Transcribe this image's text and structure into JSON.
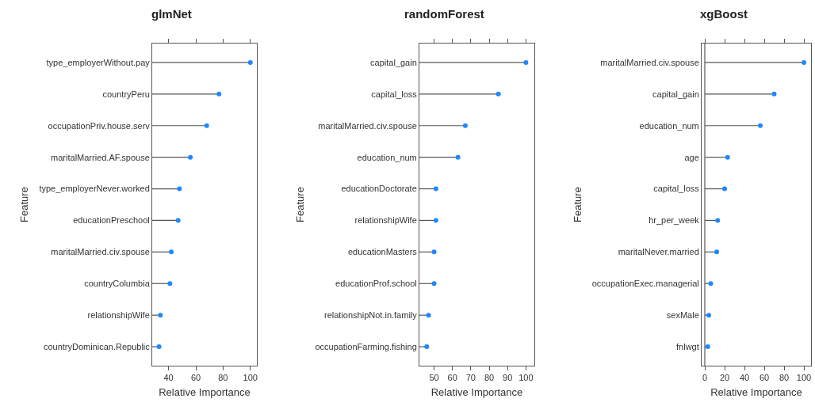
{
  "chart_data": [
    {
      "type": "lollipop",
      "title": "glmNet",
      "xlabel": "Relative Importance",
      "ylabel": "Feature",
      "orientation": "horizontal",
      "categories": [
        "type_employerWithout.pay",
        "countryPeru",
        "occupationPriv.house.serv",
        "maritalMarried.AF.spouse",
        "type_employerNever.worked",
        "educationPreschool",
        "maritalMarried.civ.spouse",
        "countryColumbia",
        "relationshipWife",
        "countryDominican.Republic"
      ],
      "values": [
        100,
        77,
        68,
        56,
        48,
        47,
        42,
        41,
        34,
        33
      ],
      "color": "#1e88ff",
      "xlim": [
        28,
        104.8
      ],
      "xticks": [
        40,
        60,
        80,
        100
      ],
      "grid": false,
      "marker": "circle"
    },
    {
      "type": "lollipop",
      "title": "randomForest",
      "xlabel": "Relative Importance",
      "ylabel": "Feature",
      "orientation": "horizontal",
      "categories": [
        "capital_gain",
        "capital_loss",
        "maritalMarried.civ.spouse",
        "education_num",
        "educationDoctorate",
        "relationshipWife",
        "educationMasters",
        "educationProf.school",
        "relationshipNot.in.family",
        "occupationFarming.fishing"
      ],
      "values": [
        100,
        85,
        67,
        63,
        51,
        51,
        50,
        50,
        47,
        46
      ],
      "color": "#1e88ff",
      "xlim": [
        42,
        104.6
      ],
      "xticks": [
        50,
        60,
        70,
        80,
        90,
        100
      ],
      "grid": false,
      "marker": "circle"
    },
    {
      "type": "lollipop",
      "title": "xgBoost",
      "xlabel": "Relative Importance",
      "ylabel": "Feature",
      "orientation": "horizontal",
      "categories": [
        "maritalMarried.civ.spouse",
        "capital_gain",
        "education_num",
        "age",
        "capital_loss",
        "hr_per_week",
        "maritalNever.married",
        "occupationExec.managerial",
        "sexMale",
        "fnlwgt"
      ],
      "values": [
        100,
        70,
        56,
        23,
        20,
        13,
        12,
        6,
        4,
        3
      ],
      "color": "#1e88ff",
      "xlim": [
        -3.2,
        107.2
      ],
      "xticks": [
        0,
        20,
        40,
        60,
        80,
        100
      ],
      "ref_lines": [
        {
          "axis": "x",
          "value": 0,
          "color": "#555555"
        }
      ],
      "grid": false,
      "marker": "circle"
    }
  ]
}
